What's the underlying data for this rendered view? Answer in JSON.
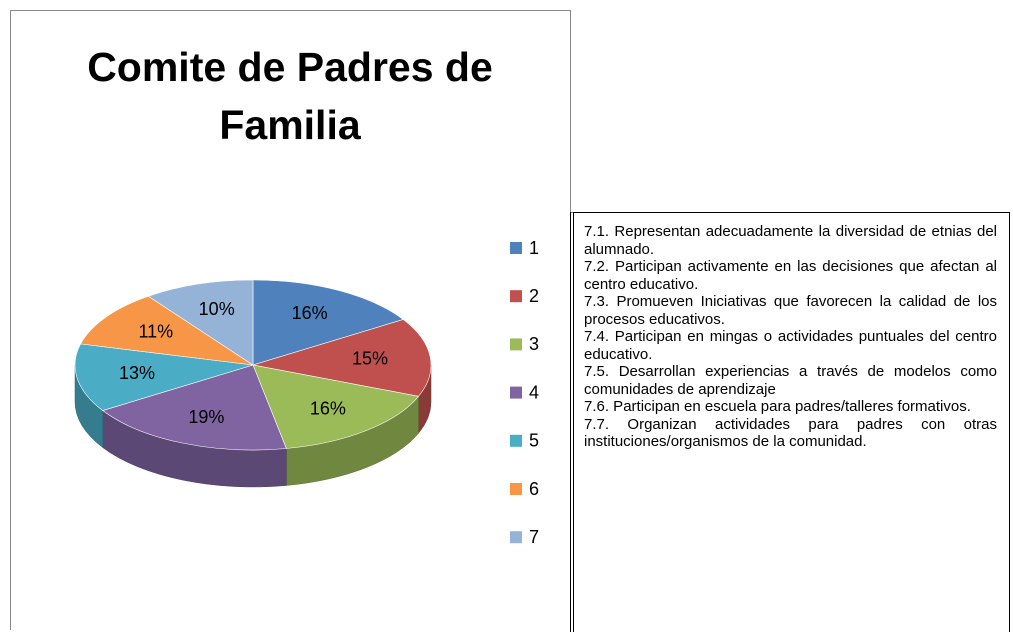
{
  "chart_data": {
    "type": "pie",
    "title_lines": [
      "Comite de Padres de",
      "Familia"
    ],
    "categories": [
      "1",
      "2",
      "3",
      "4",
      "5",
      "6",
      "7"
    ],
    "values": [
      16,
      15,
      16,
      19,
      13,
      11,
      10
    ],
    "value_labels": [
      "16%",
      "15%",
      "16%",
      "19%",
      "13%",
      "11%",
      "10%"
    ],
    "colors": [
      "#4f81bd",
      "#c0504d",
      "#9bbb59",
      "#8064a2",
      "#4bacc6",
      "#f79646",
      "#95b3d7"
    ],
    "legend": "right"
  },
  "notes": [
    "7.1. Representan adecuadamente la diversidad de etnias del alumnado.",
    "7.2. Participan activamente en las decisiones que afectan al centro educativo.",
    "7.3. Promueven Iniciativas que favorecen la calidad de los procesos educativos.",
    "7.4. Participan en mingas o actividades puntuales del centro educativo.",
    "7.5. Desarrollan experiencias a través de modelos como comunidades de aprendizaje",
    "7.6. Participan en escuela para padres/talleres formativos.",
    "7.7. Organizan actividades para padres con otras instituciones/organismos de la comunidad."
  ]
}
